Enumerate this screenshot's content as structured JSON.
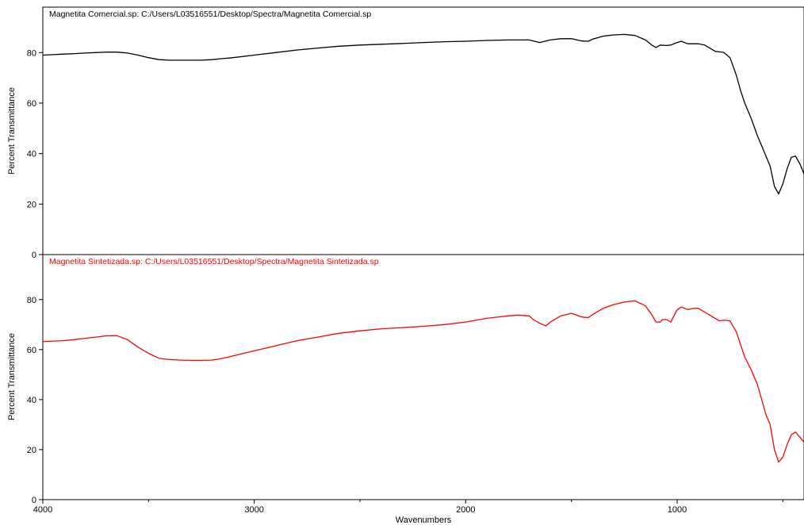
{
  "chart_data": [
    {
      "type": "line",
      "title": "Magnetita Comercial.sp: C:/Users/L03516551/Desktop/Spectra/Magnetita Comercial.sp",
      "ylabel": "Percent Transmittance",
      "ylim": [
        0,
        98
      ],
      "yticks": [
        0,
        20,
        40,
        60,
        80
      ],
      "color": "#000000",
      "x": [
        4000,
        3950,
        3900,
        3850,
        3800,
        3750,
        3700,
        3650,
        3600,
        3550,
        3500,
        3450,
        3400,
        3350,
        3300,
        3250,
        3200,
        3150,
        3100,
        3000,
        2900,
        2800,
        2700,
        2600,
        2500,
        2400,
        2300,
        2200,
        2100,
        2000,
        1900,
        1800,
        1750,
        1700,
        1650,
        1600,
        1550,
        1500,
        1450,
        1420,
        1400,
        1350,
        1300,
        1250,
        1200,
        1150,
        1120,
        1100,
        1080,
        1050,
        1030,
        1000,
        980,
        950,
        900,
        870,
        850,
        820,
        800,
        780,
        750,
        720,
        700,
        680,
        650,
        620,
        600,
        580,
        560,
        550,
        540,
        520,
        500,
        480,
        460,
        440,
        420,
        400
      ],
      "values": [
        79,
        79.2,
        79.4,
        79.6,
        79.8,
        80,
        80.2,
        80.2,
        79.8,
        79,
        78,
        77.2,
        77,
        77,
        77,
        77,
        77.2,
        77.6,
        78,
        79,
        80,
        81,
        81.8,
        82.5,
        83,
        83.3,
        83.6,
        84,
        84.3,
        84.5,
        84.8,
        85,
        85,
        85,
        84,
        85,
        85.5,
        85.5,
        84.6,
        84.5,
        85.3,
        86.5,
        87,
        87.2,
        86.8,
        85,
        83,
        82,
        83,
        82.8,
        83,
        84,
        84.5,
        83.5,
        83.5,
        83,
        82,
        80.5,
        80.3,
        80.1,
        78,
        71,
        65,
        60,
        54,
        47,
        43,
        39,
        35,
        31,
        27,
        24,
        28,
        34,
        38.5,
        39,
        36,
        32
      ]
    },
    {
      "type": "line",
      "title": "Magnetita Sintetizada.sp: C:/Users/L03516551/Desktop/Spectra/Magnetita Sintetizada.sp",
      "ylabel": "Percent Transmittance",
      "xlabel": "Wavenumbers",
      "xlim": [
        4000,
        400
      ],
      "xticks": [
        4000,
        3000,
        2000,
        1000
      ],
      "ylim": [
        0,
        98
      ],
      "yticks": [
        0,
        20,
        40,
        60,
        80
      ],
      "color": "#ff0000",
      "x": [
        4000,
        3950,
        3900,
        3850,
        3800,
        3750,
        3700,
        3650,
        3600,
        3550,
        3500,
        3450,
        3400,
        3350,
        3300,
        3250,
        3200,
        3150,
        3100,
        3000,
        2900,
        2800,
        2700,
        2600,
        2500,
        2400,
        2300,
        2200,
        2100,
        2000,
        1900,
        1800,
        1750,
        1700,
        1680,
        1650,
        1620,
        1600,
        1550,
        1500,
        1450,
        1420,
        1400,
        1350,
        1300,
        1250,
        1200,
        1150,
        1120,
        1100,
        1080,
        1070,
        1050,
        1030,
        1000,
        980,
        950,
        920,
        900,
        870,
        850,
        820,
        800,
        780,
        750,
        720,
        700,
        680,
        650,
        620,
        600,
        580,
        560,
        550,
        540,
        520,
        500,
        480,
        460,
        440,
        420,
        400
      ],
      "values": [
        63.2,
        63.4,
        63.6,
        64,
        64.5,
        65,
        65.5,
        65.6,
        64,
        61,
        58.5,
        56.5,
        56,
        55.8,
        55.7,
        55.7,
        55.8,
        56.5,
        57.5,
        59.5,
        61.5,
        63.5,
        65,
        66.5,
        67.5,
        68.3,
        68.8,
        69.3,
        70,
        71,
        72.5,
        73.5,
        73.8,
        73.5,
        72,
        70.5,
        69.5,
        71,
        73.5,
        74.5,
        73,
        72.8,
        74,
        76.5,
        78,
        79,
        79.5,
        77.5,
        74,
        71,
        71,
        72,
        72,
        71,
        76,
        77,
        76,
        76.5,
        76.5,
        75,
        74,
        72.5,
        71.5,
        71.8,
        71.5,
        67,
        62,
        57,
        52,
        46,
        40,
        34,
        30,
        25,
        20,
        15,
        17,
        22,
        26,
        27,
        25,
        23
      ]
    }
  ]
}
